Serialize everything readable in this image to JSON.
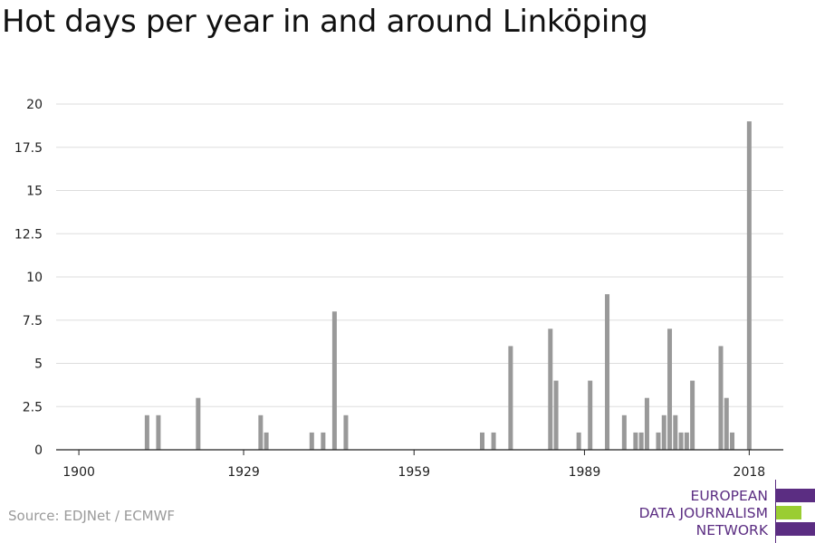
{
  "title": "Hot days per year in and around Linköping",
  "source": "Source: EDJNet / ECMWF",
  "logo": {
    "lines": [
      "EUROPEAN",
      "DATA JOURNALISM",
      "NETWORK"
    ],
    "text_color": "#5b2d82",
    "bar_colors": [
      "#5b2d82",
      "#9acd32",
      "#5b2d82"
    ]
  },
  "chart_data": {
    "type": "bar",
    "title": "Hot days per year in and around Linköping",
    "xlabel": "",
    "ylabel": "",
    "xlim": [
      1896,
      2024
    ],
    "ylim": [
      0,
      20
    ],
    "y_ticks": [
      "0",
      "2.5",
      "5",
      "7.5",
      "10",
      "12.5",
      "15",
      "17.5",
      "20"
    ],
    "x_ticks": [
      1900,
      1929,
      1959,
      1989,
      2018
    ],
    "grid": true,
    "bar_color": "#999999",
    "x": [
      1912,
      1914,
      1921,
      1932,
      1933,
      1941,
      1943,
      1945,
      1947,
      1971,
      1973,
      1976,
      1983,
      1984,
      1988,
      1990,
      1993,
      1996,
      1998,
      1999,
      2000,
      2002,
      2003,
      2004,
      2005,
      2006,
      2007,
      2008,
      2013,
      2014,
      2015,
      2018
    ],
    "values": [
      2,
      2,
      3,
      2,
      1,
      1,
      1,
      8,
      2,
      1,
      1,
      6,
      7,
      4,
      1,
      4,
      9,
      2,
      1,
      1,
      3,
      1,
      2,
      7,
      2,
      1,
      1,
      4,
      6,
      3,
      1,
      19
    ]
  }
}
